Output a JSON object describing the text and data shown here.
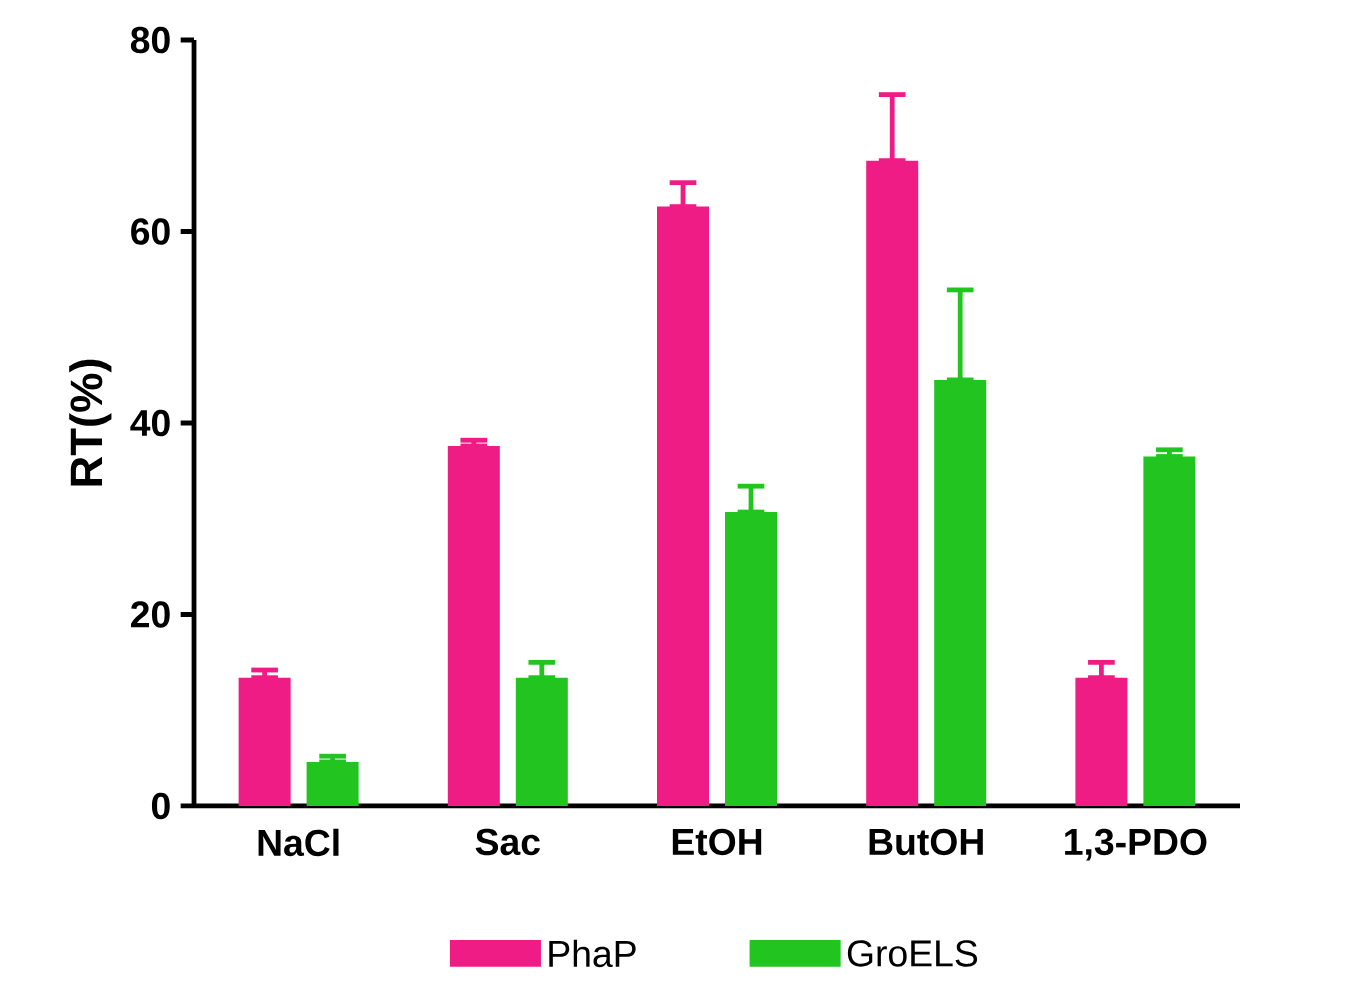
{
  "chart_data": {
    "type": "bar",
    "ylabel": "RT(%)",
    "categories": [
      "NaCl",
      "Sac",
      "EtOH",
      "ButOH",
      "1,3-PDO"
    ],
    "series": [
      {
        "name": "PhaP",
        "color": "#ee1c84",
        "values": [
          13.4,
          37.6,
          62.6,
          67.4,
          13.4
        ],
        "errors": [
          [
            13.4,
            14.2
          ],
          [
            37.6,
            38.2
          ],
          [
            62.6,
            65.1
          ],
          [
            67.4,
            74.3
          ],
          [
            13.4,
            15.0
          ]
        ]
      },
      {
        "name": "GroELS",
        "color": "#22c41f",
        "values": [
          4.6,
          13.4,
          30.7,
          44.5,
          36.5
        ],
        "errors": [
          [
            4.6,
            5.2
          ],
          [
            13.4,
            15.0
          ],
          [
            30.7,
            33.4
          ],
          [
            44.5,
            53.9
          ],
          [
            36.5,
            37.2
          ]
        ]
      }
    ],
    "ylim": [
      0,
      80
    ],
    "yticks": [
      0,
      20,
      40,
      60,
      80
    ],
    "grid": false,
    "legend": "bottom"
  }
}
